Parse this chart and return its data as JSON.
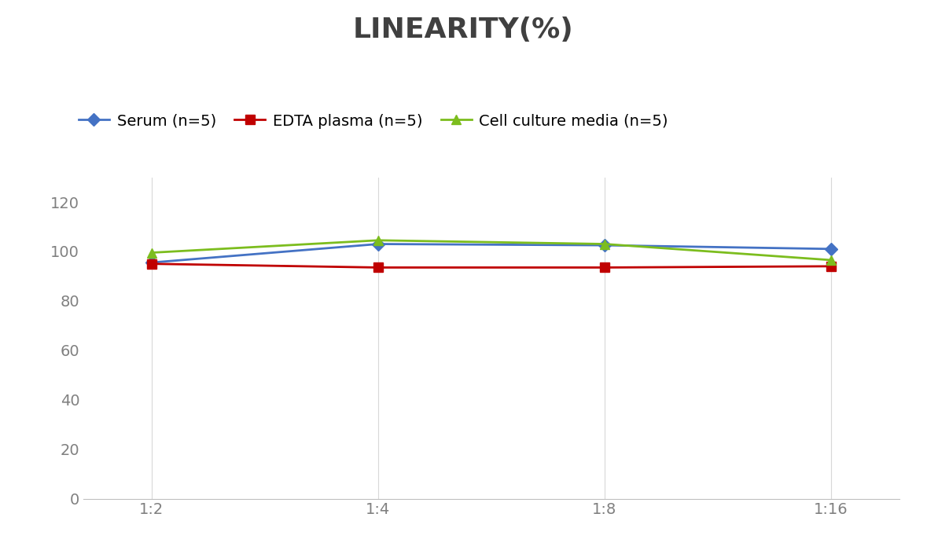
{
  "title": "LINEARITY(%)",
  "x_labels": [
    "1:2",
    "1:4",
    "1:8",
    "1:16"
  ],
  "x_positions": [
    0,
    1,
    2,
    3
  ],
  "series": [
    {
      "name": "Serum (n=5)",
      "values": [
        95.5,
        103.0,
        102.5,
        101.0
      ],
      "color": "#4472C4",
      "marker": "D",
      "markersize": 8,
      "linewidth": 2
    },
    {
      "name": "EDTA plasma (n=5)",
      "values": [
        95.0,
        93.5,
        93.5,
        94.0
      ],
      "color": "#C00000",
      "marker": "s",
      "markersize": 8,
      "linewidth": 2
    },
    {
      "name": "Cell culture media (n=5)",
      "values": [
        99.5,
        104.5,
        103.0,
        96.5
      ],
      "color": "#7CBD1E",
      "marker": "^",
      "markersize": 9,
      "linewidth": 2
    }
  ],
  "ylim": [
    0,
    130
  ],
  "yticks": [
    0,
    20,
    40,
    60,
    80,
    100,
    120
  ],
  "title_fontsize": 26,
  "title_color": "#404040",
  "legend_fontsize": 14,
  "tick_fontsize": 14,
  "tick_color": "#808080",
  "background_color": "#ffffff",
  "grid_color": "#d8d8d8"
}
